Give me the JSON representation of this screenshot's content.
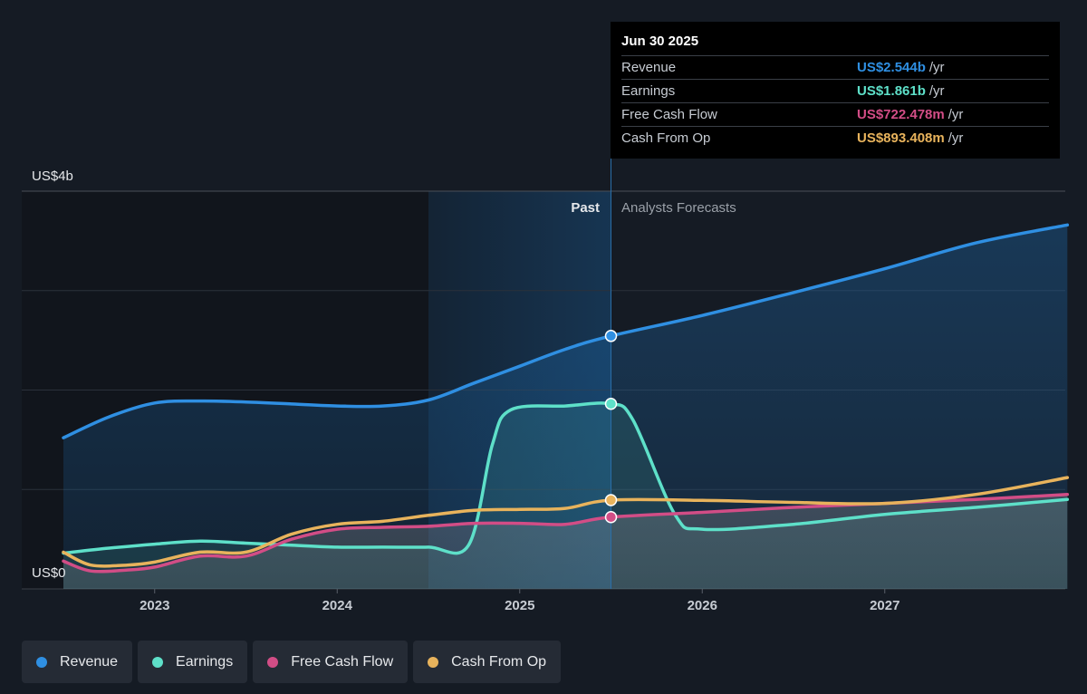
{
  "tooltip": {
    "date": "Jun 30 2025",
    "rows": [
      {
        "label": "Revenue",
        "value": "US$2.544b",
        "unit": "/yr",
        "color": "#2f8fe2"
      },
      {
        "label": "Earnings",
        "value": "US$1.861b",
        "unit": "/yr",
        "color": "#5ee0c9"
      },
      {
        "label": "Free Cash Flow",
        "value": "US$722.478m",
        "unit": "/yr",
        "color": "#d24d86"
      },
      {
        "label": "Cash From Op",
        "value": "US$893.408m",
        "unit": "/yr",
        "color": "#e8b35c"
      }
    ]
  },
  "labels": {
    "y_top": "US$4b",
    "y_bottom": "US$0",
    "past": "Past",
    "forecast": "Analysts Forecasts"
  },
  "legend": [
    {
      "label": "Revenue",
      "color": "#2f8fe2"
    },
    {
      "label": "Earnings",
      "color": "#5ee0c9"
    },
    {
      "label": "Free Cash Flow",
      "color": "#d24d86"
    },
    {
      "label": "Cash From Op",
      "color": "#e8b35c"
    }
  ],
  "chart_data": {
    "type": "line",
    "unit": "US$ billions per year",
    "ylim": [
      0,
      4
    ],
    "xlim": [
      2022.5,
      2028.0
    ],
    "x_ticks": [
      "2023",
      "2024",
      "2025",
      "2026",
      "2027"
    ],
    "grid": true,
    "divider_x": 2025.5,
    "highlight_range": [
      2024.5,
      2025.5
    ],
    "series": [
      {
        "name": "Revenue",
        "color": "#2f8fe2",
        "fill": true,
        "points": [
          [
            2022.5,
            1.52
          ],
          [
            2022.75,
            1.73
          ],
          [
            2023.0,
            1.87
          ],
          [
            2023.25,
            1.89
          ],
          [
            2023.5,
            1.88
          ],
          [
            2023.75,
            1.86
          ],
          [
            2024.0,
            1.84
          ],
          [
            2024.25,
            1.84
          ],
          [
            2024.5,
            1.9
          ],
          [
            2024.75,
            2.07
          ],
          [
            2025.0,
            2.24
          ],
          [
            2025.25,
            2.41
          ],
          [
            2025.5,
            2.544
          ],
          [
            2026.0,
            2.75
          ],
          [
            2026.5,
            2.98
          ],
          [
            2027.0,
            3.22
          ],
          [
            2027.5,
            3.48
          ],
          [
            2028.0,
            3.66
          ]
        ]
      },
      {
        "name": "Earnings",
        "color": "#5ee0c9",
        "fill": true,
        "points": [
          [
            2022.5,
            0.36
          ],
          [
            2022.75,
            0.41
          ],
          [
            2023.0,
            0.45
          ],
          [
            2023.25,
            0.48
          ],
          [
            2023.5,
            0.46
          ],
          [
            2023.75,
            0.44
          ],
          [
            2024.0,
            0.42
          ],
          [
            2024.25,
            0.42
          ],
          [
            2024.5,
            0.42
          ],
          [
            2024.72,
            0.44
          ],
          [
            2024.85,
            1.45
          ],
          [
            2024.95,
            1.8
          ],
          [
            2025.25,
            1.84
          ],
          [
            2025.5,
            1.861
          ],
          [
            2025.62,
            1.7
          ],
          [
            2025.85,
            0.75
          ],
          [
            2026.0,
            0.6
          ],
          [
            2026.5,
            0.65
          ],
          [
            2027.0,
            0.75
          ],
          [
            2027.5,
            0.82
          ],
          [
            2028.0,
            0.9
          ]
        ]
      },
      {
        "name": "Free Cash Flow",
        "color": "#d24d86",
        "fill": true,
        "points": [
          [
            2022.5,
            0.28
          ],
          [
            2022.65,
            0.18
          ],
          [
            2022.85,
            0.19
          ],
          [
            2023.0,
            0.22
          ],
          [
            2023.25,
            0.33
          ],
          [
            2023.5,
            0.33
          ],
          [
            2023.75,
            0.5
          ],
          [
            2024.0,
            0.6
          ],
          [
            2024.25,
            0.62
          ],
          [
            2024.5,
            0.63
          ],
          [
            2024.75,
            0.66
          ],
          [
            2025.0,
            0.66
          ],
          [
            2025.25,
            0.65
          ],
          [
            2025.5,
            0.722
          ],
          [
            2026.0,
            0.77
          ],
          [
            2026.5,
            0.82
          ],
          [
            2027.0,
            0.86
          ],
          [
            2027.5,
            0.9
          ],
          [
            2028.0,
            0.95
          ]
        ]
      },
      {
        "name": "Cash From Op",
        "color": "#e8b35c",
        "fill": false,
        "points": [
          [
            2022.5,
            0.37
          ],
          [
            2022.65,
            0.24
          ],
          [
            2022.85,
            0.24
          ],
          [
            2023.0,
            0.27
          ],
          [
            2023.25,
            0.37
          ],
          [
            2023.5,
            0.37
          ],
          [
            2023.75,
            0.55
          ],
          [
            2024.0,
            0.65
          ],
          [
            2024.25,
            0.68
          ],
          [
            2024.5,
            0.74
          ],
          [
            2024.75,
            0.79
          ],
          [
            2025.0,
            0.8
          ],
          [
            2025.25,
            0.81
          ],
          [
            2025.5,
            0.893
          ],
          [
            2026.0,
            0.89
          ],
          [
            2026.5,
            0.87
          ],
          [
            2027.0,
            0.86
          ],
          [
            2027.5,
            0.95
          ],
          [
            2028.0,
            1.12
          ]
        ]
      }
    ]
  }
}
